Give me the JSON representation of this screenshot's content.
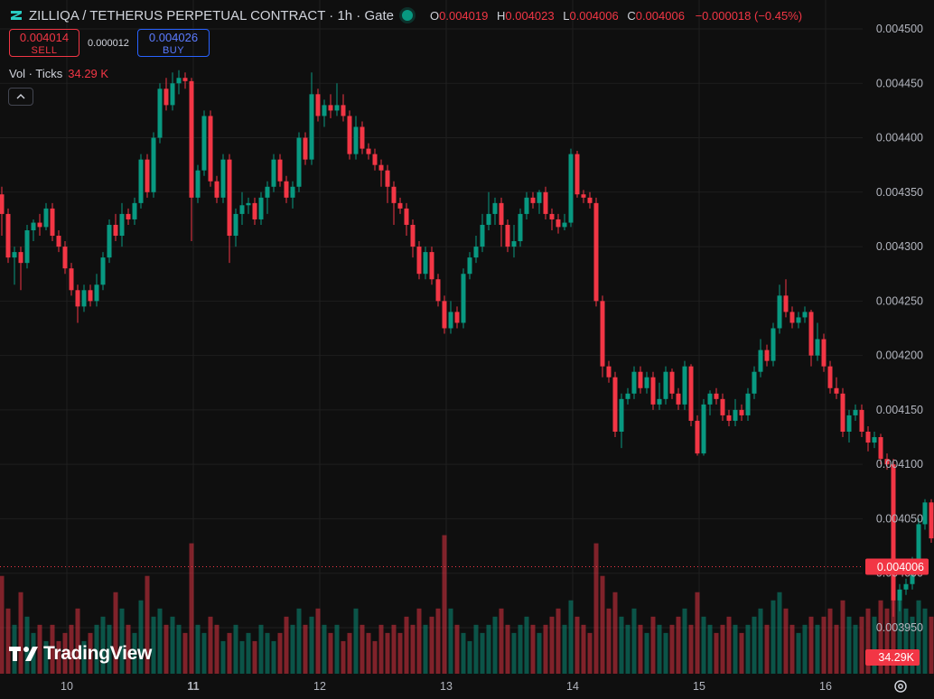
{
  "header": {
    "title": "ZILLIQA / TETHERUS PERPETUAL CONTRACT · 1h · Gate",
    "ohlc": [
      {
        "key": "O",
        "value": "0.004019"
      },
      {
        "key": "H",
        "value": "0.004023"
      },
      {
        "key": "L",
        "value": "0.004006"
      },
      {
        "key": "C",
        "value": "0.004006"
      }
    ],
    "change": "−0.000018 (−0.45%)"
  },
  "trade": {
    "sell_price": "0.004014",
    "sell_label": "SELL",
    "spread": "0.000012",
    "buy_price": "0.004026",
    "buy_label": "BUY"
  },
  "volume_legend": {
    "label": "Vol · Ticks",
    "value": "34.29 K"
  },
  "branding": "TradingView",
  "icons": [
    "zilliqa-logo-icon",
    "market-status-icon",
    "chevron-up-icon",
    "tradingview-logo-icon",
    "settings-icon"
  ],
  "colors": {
    "up": "#089981",
    "down": "#f23645",
    "background": "#0f0f0f",
    "grid": "#1f1f1f",
    "buy": "#2962ff"
  },
  "chart_data": {
    "type": "candlestick",
    "timeframe": "1h",
    "ylim": [
      0.00391,
      0.00451
    ],
    "y_ticks": [
      "0.004500",
      "0.004450",
      "0.004400",
      "0.004350",
      "0.004300",
      "0.004250",
      "0.004200",
      "0.004150",
      "0.004100",
      "0.004050",
      "0.004000",
      "0.003950"
    ],
    "x_labels": [
      {
        "index": 10,
        "label": "10"
      },
      {
        "index": 30,
        "label": "11"
      },
      {
        "index": 50,
        "label": "12"
      },
      {
        "index": 70,
        "label": "13"
      },
      {
        "index": 90,
        "label": "14"
      },
      {
        "index": 110,
        "label": "15"
      },
      {
        "index": 130,
        "label": "16"
      }
    ],
    "current_price_label": "0.004006",
    "volume_label": "34.29K",
    "candles": [
      [
        0.004348,
        0.00433,
        0.004355,
        0.00431,
        0.6
      ],
      [
        0.00433,
        0.00429,
        0.004335,
        0.004285,
        0.4
      ],
      [
        0.00429,
        0.004295,
        0.0043,
        0.004265,
        0.3
      ],
      [
        0.004295,
        0.004285,
        0.0043,
        0.00426,
        0.5
      ],
      [
        0.004285,
        0.004315,
        0.00432,
        0.00428,
        0.35
      ],
      [
        0.004315,
        0.004322,
        0.004325,
        0.004305,
        0.25
      ],
      [
        0.004322,
        0.004318,
        0.00433,
        0.00431,
        0.3
      ],
      [
        0.004318,
        0.004335,
        0.00434,
        0.004315,
        0.2
      ],
      [
        0.004335,
        0.00431,
        0.00434,
        0.004305,
        0.3
      ],
      [
        0.00431,
        0.0043,
        0.004315,
        0.004295,
        0.2
      ],
      [
        0.0043,
        0.00428,
        0.004305,
        0.004275,
        0.25
      ],
      [
        0.00428,
        0.00426,
        0.004285,
        0.004255,
        0.3
      ],
      [
        0.00426,
        0.004245,
        0.004265,
        0.00423,
        0.4
      ],
      [
        0.004245,
        0.00426,
        0.004265,
        0.00424,
        0.2
      ],
      [
        0.00426,
        0.00425,
        0.004265,
        0.004245,
        0.25
      ],
      [
        0.00425,
        0.004265,
        0.004275,
        0.004245,
        0.3
      ],
      [
        0.004265,
        0.00429,
        0.004295,
        0.00426,
        0.35
      ],
      [
        0.00429,
        0.00432,
        0.004325,
        0.004285,
        0.3
      ],
      [
        0.00432,
        0.00431,
        0.00433,
        0.004305,
        0.5
      ],
      [
        0.00431,
        0.00433,
        0.00434,
        0.0043,
        0.4
      ],
      [
        0.00433,
        0.004325,
        0.004335,
        0.00432,
        0.3
      ],
      [
        0.004325,
        0.00434,
        0.004345,
        0.00432,
        0.25
      ],
      [
        0.00434,
        0.00438,
        0.004385,
        0.004335,
        0.45
      ],
      [
        0.00438,
        0.00435,
        0.004385,
        0.004345,
        0.6
      ],
      [
        0.00435,
        0.0044,
        0.004405,
        0.004345,
        0.35
      ],
      [
        0.0044,
        0.004445,
        0.00445,
        0.004395,
        0.4
      ],
      [
        0.004445,
        0.00443,
        0.004455,
        0.004425,
        0.3
      ],
      [
        0.00443,
        0.00445,
        0.00446,
        0.004425,
        0.35
      ],
      [
        0.00445,
        0.004455,
        0.004462,
        0.00444,
        0.3
      ],
      [
        0.004455,
        0.004452,
        0.00446,
        0.004445,
        0.25
      ],
      [
        0.004452,
        0.004345,
        0.004455,
        0.004305,
        0.8
      ],
      [
        0.004345,
        0.00437,
        0.004375,
        0.00434,
        0.3
      ],
      [
        0.00437,
        0.00442,
        0.004425,
        0.004365,
        0.25
      ],
      [
        0.00442,
        0.00436,
        0.004425,
        0.004355,
        0.35
      ],
      [
        0.00436,
        0.004345,
        0.004365,
        0.00434,
        0.3
      ],
      [
        0.004345,
        0.00438,
        0.004385,
        0.00434,
        0.2
      ],
      [
        0.00438,
        0.00431,
        0.004385,
        0.004285,
        0.25
      ],
      [
        0.00431,
        0.00433,
        0.004335,
        0.0043,
        0.3
      ],
      [
        0.00433,
        0.004338,
        0.00435,
        0.00432,
        0.2
      ],
      [
        0.004338,
        0.00434,
        0.004345,
        0.00433,
        0.25
      ],
      [
        0.00434,
        0.004325,
        0.004345,
        0.00432,
        0.2
      ],
      [
        0.004325,
        0.004345,
        0.00435,
        0.00432,
        0.3
      ],
      [
        0.004345,
        0.004355,
        0.00436,
        0.00433,
        0.25
      ],
      [
        0.004355,
        0.00438,
        0.004385,
        0.00435,
        0.2
      ],
      [
        0.00438,
        0.00436,
        0.004385,
        0.004355,
        0.25
      ],
      [
        0.00436,
        0.004345,
        0.004365,
        0.00434,
        0.35
      ],
      [
        0.004345,
        0.004355,
        0.00436,
        0.004335,
        0.3
      ],
      [
        0.004355,
        0.0044,
        0.004405,
        0.00435,
        0.4
      ],
      [
        0.0044,
        0.00438,
        0.004405,
        0.004375,
        0.3
      ],
      [
        0.00438,
        0.00444,
        0.00446,
        0.004375,
        0.35
      ],
      [
        0.00444,
        0.00442,
        0.004445,
        0.004415,
        0.4
      ],
      [
        0.00442,
        0.00443,
        0.004435,
        0.00441,
        0.3
      ],
      [
        0.00443,
        0.004425,
        0.00444,
        0.004418,
        0.25
      ],
      [
        0.004425,
        0.00443,
        0.00445,
        0.00442,
        0.3
      ],
      [
        0.00443,
        0.00442,
        0.00444,
        0.004415,
        0.2
      ],
      [
        0.00442,
        0.004385,
        0.004425,
        0.00438,
        0.25
      ],
      [
        0.004385,
        0.00441,
        0.00442,
        0.00438,
        0.4
      ],
      [
        0.00441,
        0.00439,
        0.004415,
        0.004385,
        0.3
      ],
      [
        0.00439,
        0.004385,
        0.004395,
        0.00438,
        0.25
      ],
      [
        0.004385,
        0.004375,
        0.00439,
        0.00437,
        0.2
      ],
      [
        0.004375,
        0.00437,
        0.00438,
        0.004355,
        0.3
      ],
      [
        0.00437,
        0.004355,
        0.004375,
        0.00434,
        0.25
      ],
      [
        0.004355,
        0.00434,
        0.00436,
        0.00432,
        0.3
      ],
      [
        0.00434,
        0.004335,
        0.004345,
        0.00433,
        0.25
      ],
      [
        0.004335,
        0.00432,
        0.00434,
        0.00431,
        0.35
      ],
      [
        0.00432,
        0.0043,
        0.004325,
        0.00429,
        0.3
      ],
      [
        0.0043,
        0.004275,
        0.004305,
        0.00427,
        0.4
      ],
      [
        0.004275,
        0.004295,
        0.0043,
        0.00427,
        0.3
      ],
      [
        0.004295,
        0.00427,
        0.0043,
        0.004265,
        0.35
      ],
      [
        0.00427,
        0.00425,
        0.004275,
        0.004245,
        0.4
      ],
      [
        0.00425,
        0.004225,
        0.004255,
        0.00422,
        0.85
      ],
      [
        0.004225,
        0.00424,
        0.00425,
        0.00422,
        0.4
      ],
      [
        0.00424,
        0.00423,
        0.004245,
        0.004225,
        0.3
      ],
      [
        0.00423,
        0.004275,
        0.00428,
        0.004225,
        0.25
      ],
      [
        0.004275,
        0.00429,
        0.004295,
        0.00427,
        0.2
      ],
      [
        0.00429,
        0.0043,
        0.00431,
        0.004285,
        0.3
      ],
      [
        0.0043,
        0.00432,
        0.00433,
        0.004295,
        0.25
      ],
      [
        0.00432,
        0.00433,
        0.00435,
        0.004315,
        0.3
      ],
      [
        0.00433,
        0.00434,
        0.004345,
        0.00432,
        0.35
      ],
      [
        0.00434,
        0.00432,
        0.004345,
        0.0043,
        0.4
      ],
      [
        0.00432,
        0.0043,
        0.004325,
        0.004295,
        0.3
      ],
      [
        0.0043,
        0.004305,
        0.00432,
        0.00429,
        0.25
      ],
      [
        0.004305,
        0.00433,
        0.004335,
        0.0043,
        0.3
      ],
      [
        0.00433,
        0.004345,
        0.00435,
        0.004325,
        0.35
      ],
      [
        0.004345,
        0.00434,
        0.00435,
        0.004335,
        0.3
      ],
      [
        0.00434,
        0.00435,
        0.004352,
        0.00433,
        0.25
      ],
      [
        0.00435,
        0.00433,
        0.004355,
        0.004325,
        0.3
      ],
      [
        0.00433,
        0.004325,
        0.004335,
        0.004315,
        0.35
      ],
      [
        0.004325,
        0.004318,
        0.00433,
        0.004312,
        0.4
      ],
      [
        0.004318,
        0.004322,
        0.00433,
        0.004315,
        0.3
      ],
      [
        0.004322,
        0.004385,
        0.00439,
        0.004318,
        0.45
      ],
      [
        0.004385,
        0.004348,
        0.004388,
        0.004345,
        0.35
      ],
      [
        0.004348,
        0.004345,
        0.004352,
        0.00434,
        0.3
      ],
      [
        0.004345,
        0.00434,
        0.00435,
        0.004335,
        0.25
      ],
      [
        0.00434,
        0.00425,
        0.004345,
        0.004245,
        0.8
      ],
      [
        0.00425,
        0.00419,
        0.004255,
        0.00418,
        0.6
      ],
      [
        0.00419,
        0.00418,
        0.004195,
        0.004175,
        0.4
      ],
      [
        0.00418,
        0.00413,
        0.004185,
        0.004125,
        0.5
      ],
      [
        0.00413,
        0.00416,
        0.004165,
        0.004115,
        0.35
      ],
      [
        0.00416,
        0.004165,
        0.00417,
        0.004155,
        0.3
      ],
      [
        0.004165,
        0.004185,
        0.00419,
        0.00416,
        0.4
      ],
      [
        0.004185,
        0.00417,
        0.00419,
        0.004165,
        0.3
      ],
      [
        0.00417,
        0.00418,
        0.004185,
        0.004165,
        0.25
      ],
      [
        0.00418,
        0.004155,
        0.004185,
        0.00415,
        0.35
      ],
      [
        0.004155,
        0.00416,
        0.004175,
        0.00415,
        0.3
      ],
      [
        0.00416,
        0.004185,
        0.00419,
        0.004155,
        0.25
      ],
      [
        0.004185,
        0.004165,
        0.004188,
        0.00416,
        0.3
      ],
      [
        0.004165,
        0.004155,
        0.00417,
        0.00415,
        0.35
      ],
      [
        0.004155,
        0.00419,
        0.004195,
        0.00415,
        0.4
      ],
      [
        0.00419,
        0.00414,
        0.004192,
        0.004135,
        0.3
      ],
      [
        0.00414,
        0.00411,
        0.004145,
        0.004108,
        0.5
      ],
      [
        0.00411,
        0.004155,
        0.00416,
        0.004108,
        0.35
      ],
      [
        0.004155,
        0.004165,
        0.004168,
        0.004145,
        0.3
      ],
      [
        0.004165,
        0.00416,
        0.00417,
        0.004155,
        0.25
      ],
      [
        0.00416,
        0.004145,
        0.004165,
        0.00414,
        0.3
      ],
      [
        0.004145,
        0.00414,
        0.00415,
        0.004135,
        0.35
      ],
      [
        0.00414,
        0.00415,
        0.00416,
        0.004135,
        0.3
      ],
      [
        0.00415,
        0.004145,
        0.004155,
        0.00414,
        0.25
      ],
      [
        0.004145,
        0.004165,
        0.00417,
        0.00414,
        0.3
      ],
      [
        0.004165,
        0.004185,
        0.00419,
        0.00416,
        0.35
      ],
      [
        0.004185,
        0.004205,
        0.004215,
        0.00418,
        0.4
      ],
      [
        0.004205,
        0.004195,
        0.00421,
        0.00419,
        0.3
      ],
      [
        0.004195,
        0.004225,
        0.00423,
        0.00419,
        0.45
      ],
      [
        0.004225,
        0.004255,
        0.004265,
        0.00422,
        0.5
      ],
      [
        0.004255,
        0.00424,
        0.00427,
        0.004235,
        0.4
      ],
      [
        0.00424,
        0.00423,
        0.004245,
        0.004225,
        0.3
      ],
      [
        0.00423,
        0.004235,
        0.00424,
        0.004225,
        0.25
      ],
      [
        0.004235,
        0.00424,
        0.004245,
        0.00423,
        0.3
      ],
      [
        0.00424,
        0.0042,
        0.004242,
        0.00419,
        0.35
      ],
      [
        0.0042,
        0.004215,
        0.00423,
        0.004195,
        0.3
      ],
      [
        0.004215,
        0.00419,
        0.00422,
        0.004185,
        0.35
      ],
      [
        0.00419,
        0.00417,
        0.004195,
        0.004165,
        0.4
      ],
      [
        0.00417,
        0.004165,
        0.00418,
        0.00416,
        0.3
      ],
      [
        0.004165,
        0.00413,
        0.00417,
        0.004125,
        0.45
      ],
      [
        0.00413,
        0.004145,
        0.00415,
        0.00412,
        0.35
      ],
      [
        0.004145,
        0.00415,
        0.004155,
        0.00414,
        0.3
      ],
      [
        0.00415,
        0.00413,
        0.004155,
        0.004125,
        0.35
      ],
      [
        0.00413,
        0.00412,
        0.004135,
        0.004112,
        0.4
      ],
      [
        0.00412,
        0.004125,
        0.00413,
        0.004115,
        0.35
      ],
      [
        0.004125,
        0.004105,
        0.004128,
        0.0041,
        0.45
      ],
      [
        0.004105,
        0.0041,
        0.00411,
        0.004095,
        0.4
      ],
      [
        0.0041,
        0.003975,
        0.004105,
        0.00396,
        0.9
      ],
      [
        0.003975,
        0.003985,
        0.00399,
        0.003965,
        0.5
      ],
      [
        0.003985,
        0.00399,
        0.003995,
        0.00398,
        0.4
      ],
      [
        0.00399,
        0.00401,
        0.004015,
        0.003985,
        0.35
      ],
      [
        0.00401,
        0.004045,
        0.00405,
        0.004005,
        0.45
      ],
      [
        0.004045,
        0.004065,
        0.004068,
        0.00404,
        0.4
      ],
      [
        0.004065,
        0.004032,
        0.004068,
        0.004028,
        0.35
      ],
      [
        0.004032,
        0.004025,
        0.004035,
        0.00402,
        0.3
      ],
      [
        0.004019,
        0.004006,
        0.004023,
        0.004006,
        0.2
      ]
    ]
  }
}
